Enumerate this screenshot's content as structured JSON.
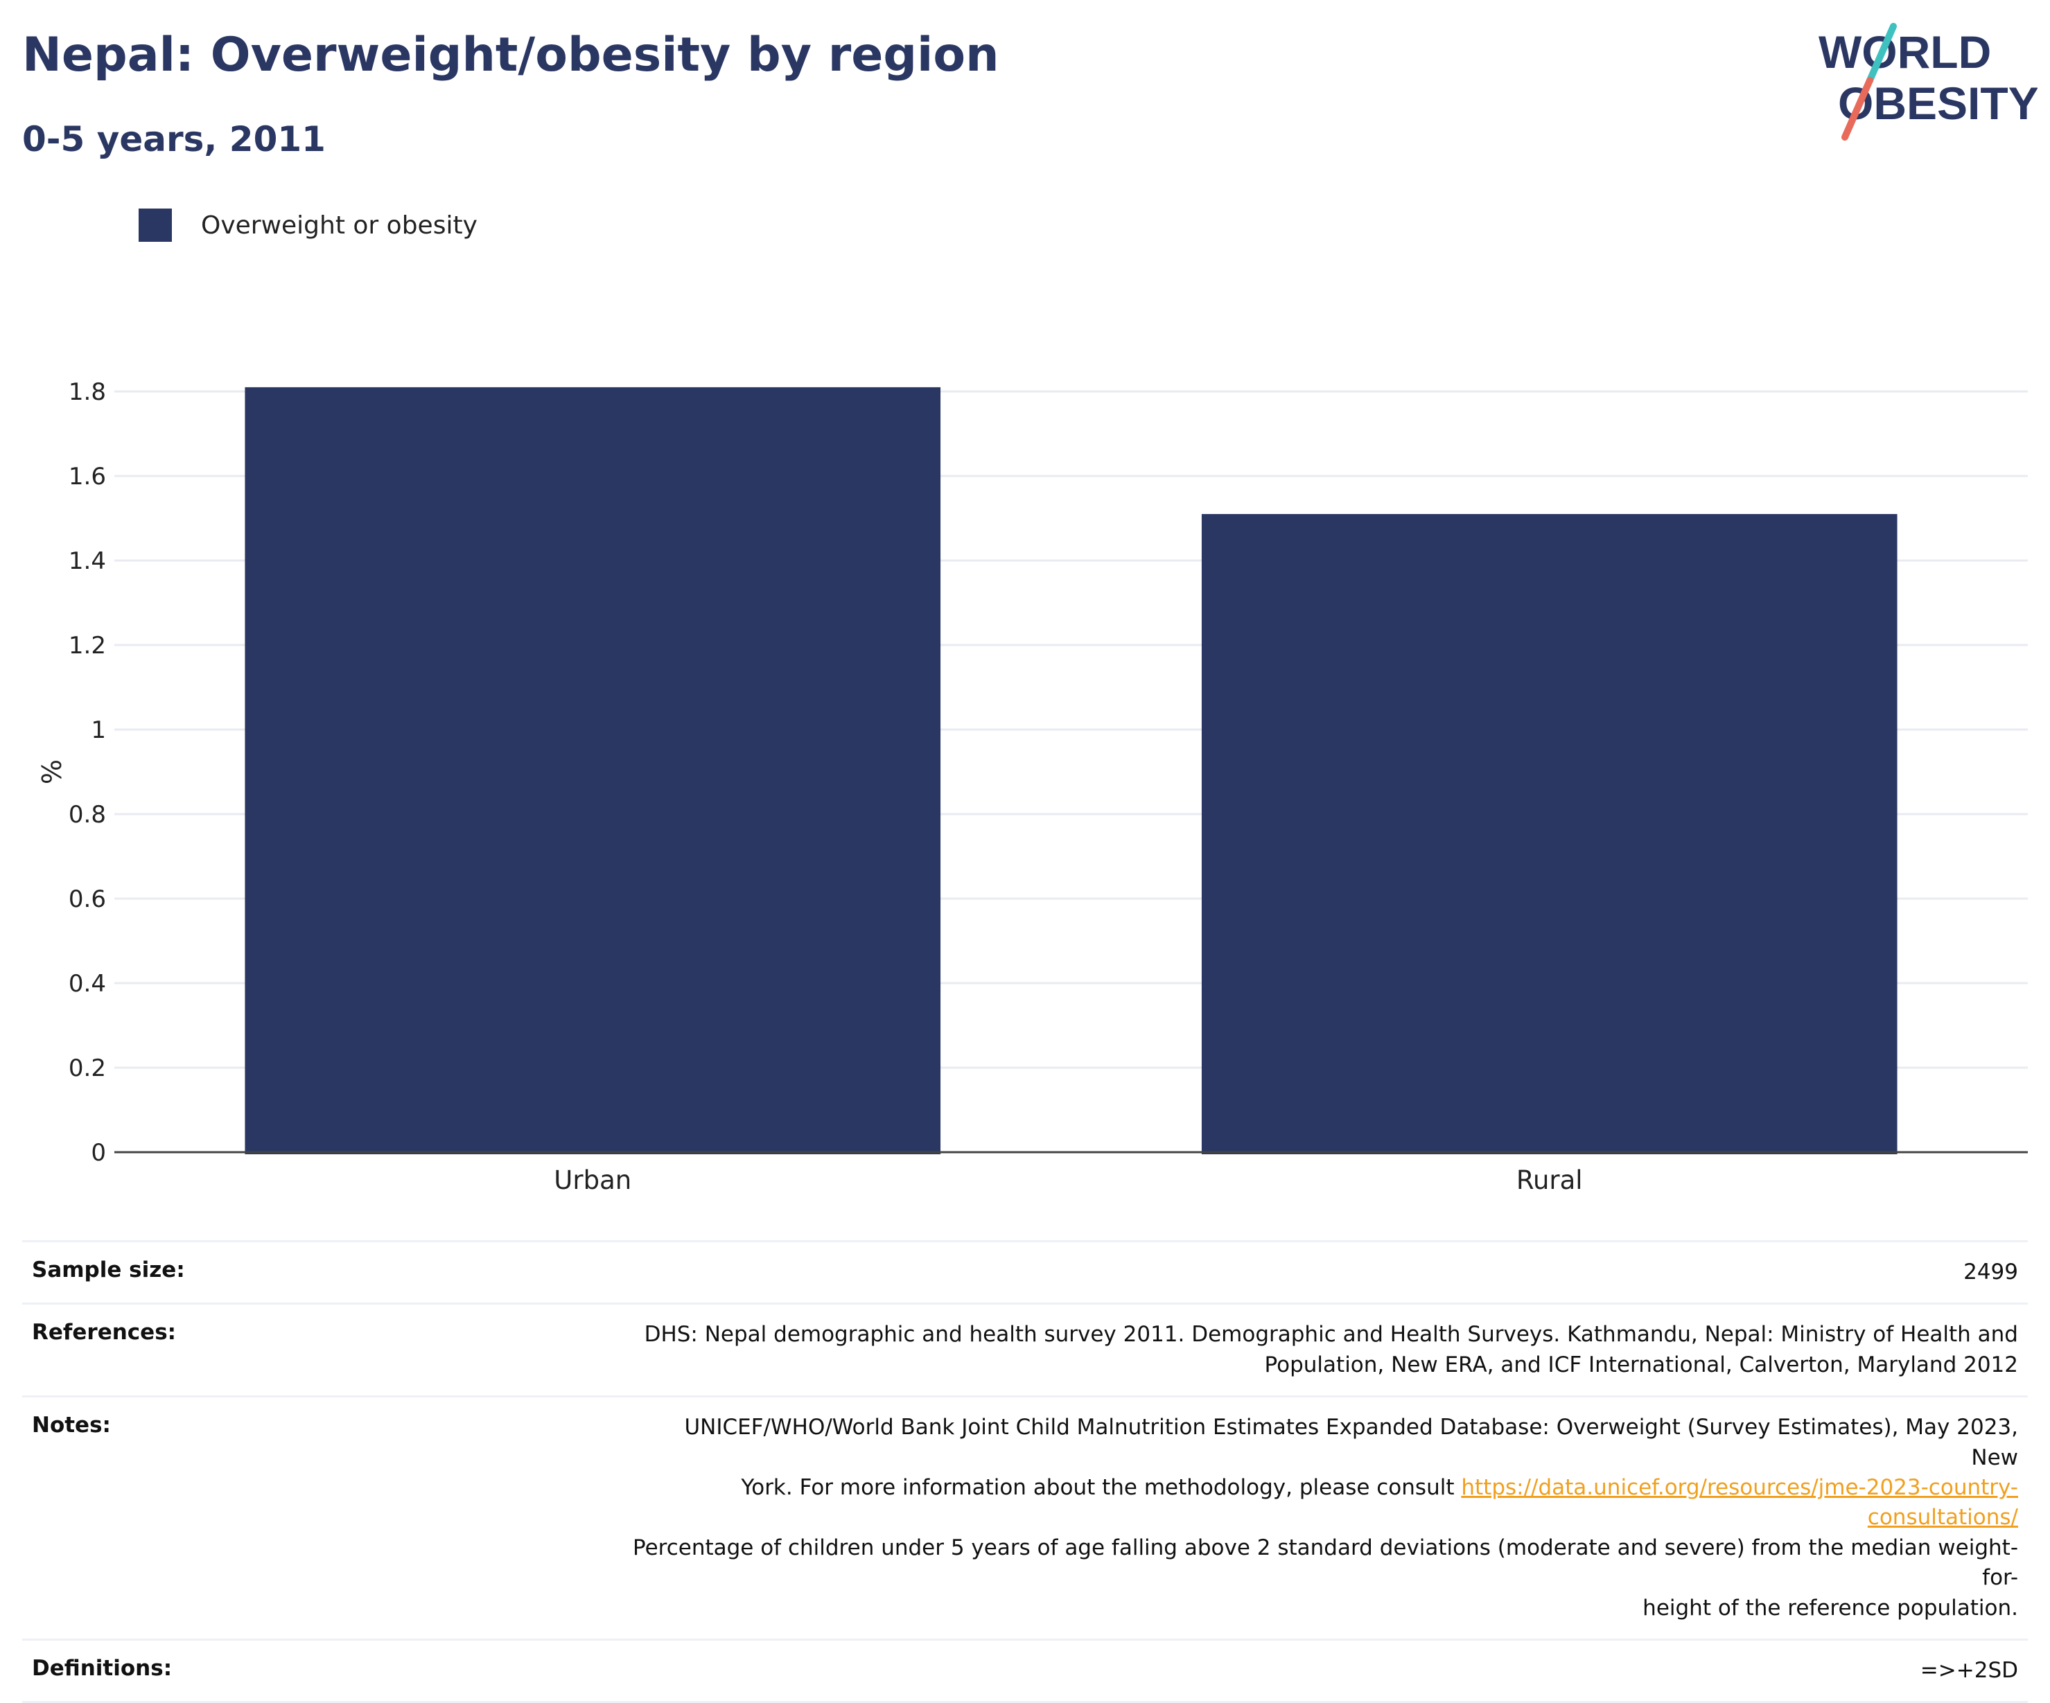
{
  "header": {
    "title": "Nepal: Overweight/obesity by region",
    "subtitle": "0-5 years, 2011"
  },
  "logo": {
    "line1": "WORLD",
    "line2": "OBESITY",
    "colors": {
      "text": "#2b3763",
      "slash_top": "#3fc1c0",
      "slash_bottom": "#e86a5a"
    }
  },
  "colors": {
    "bar": "#2b3763",
    "grid": "#e9ebf0",
    "axis": "#444444",
    "tick_text": "#222222"
  },
  "chart_data": {
    "type": "bar",
    "categories": [
      "Urban",
      "Rural"
    ],
    "series": [
      {
        "name": "Overweight or obesity",
        "values": [
          1.81,
          1.51
        ]
      }
    ],
    "ylabel": "%",
    "xlabel": "",
    "ylim": [
      0,
      1.8
    ],
    "y_ticks": [
      "0",
      "0.2",
      "0.4",
      "0.6",
      "0.8",
      "1",
      "1.2",
      "1.4",
      "1.6",
      "1.8"
    ],
    "grid": true,
    "legend_position": "top-left"
  },
  "meta": {
    "sample_size": {
      "label": "Sample size:",
      "value": "2499"
    },
    "references": {
      "label": "References:",
      "line1": "DHS: Nepal demographic and health survey 2011. Demographic and Health Surveys. Kathmandu, Nepal: Ministry of Health and",
      "line2": "Population, New ERA, and ICF International, Calverton, Maryland 2012"
    },
    "notes": {
      "label": "Notes:",
      "line1": "UNICEF/WHO/World Bank Joint Child Malnutrition Estimates Expanded Database: Overweight (Survey Estimates), May 2023, New",
      "line2_prefix": "York. For more information about the methodology, please consult ",
      "link": "https://data.unicef.org/resources/jme-2023-country-consultations/",
      "line3": "Percentage of children under 5 years of age falling above 2 standard deviations (moderate and severe) from the median weight-for-",
      "line4": "height of the reference population."
    },
    "definitions": {
      "label": "Definitions:",
      "value": "=>+2SD"
    }
  }
}
